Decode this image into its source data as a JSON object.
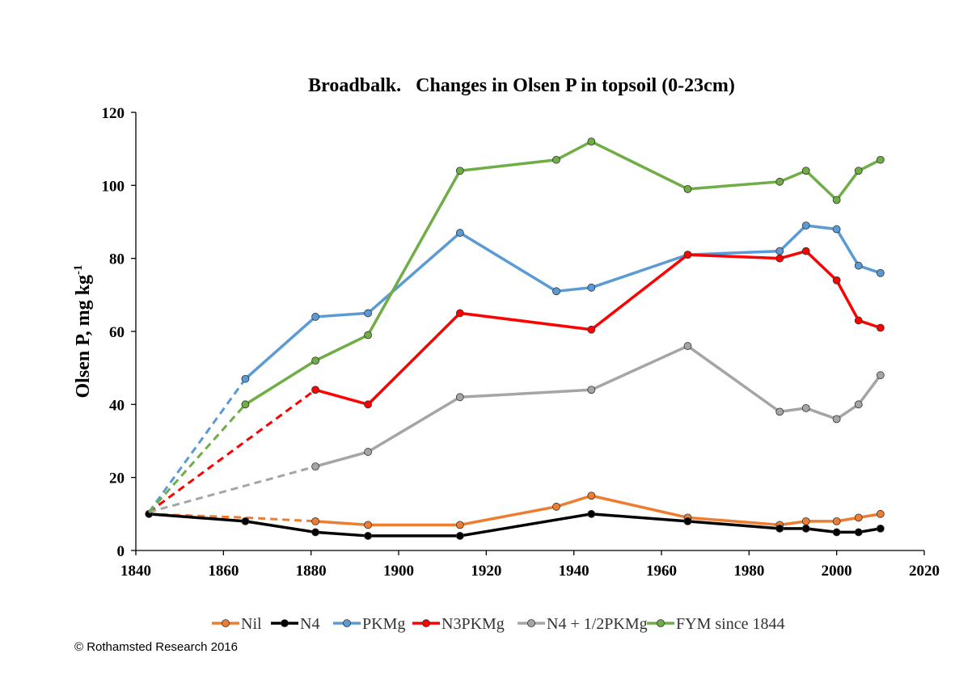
{
  "chart_data": {
    "type": "line",
    "title": "Broadbalk.   Changes in Olsen P in topsoil (0-23cm)",
    "ylabel": "Olsen P, mg kg",
    "ylabel_sup": "-1",
    "xlabel": "",
    "xlim": [
      1840,
      2020
    ],
    "ylim": [
      0,
      120
    ],
    "xticks": [
      1840,
      1860,
      1880,
      1900,
      1920,
      1940,
      1960,
      1980,
      2000,
      2020
    ],
    "yticks": [
      0,
      20,
      40,
      60,
      80,
      100,
      120
    ],
    "grid": false,
    "legend_position": "bottom",
    "series": [
      {
        "name": "Nil",
        "color": "#ED7D31",
        "dashed": [
          [
            1843,
            10
          ],
          [
            1865,
            9
          ],
          [
            1881,
            8
          ]
        ],
        "points": [
          [
            1881,
            8
          ],
          [
            1893,
            7
          ],
          [
            1914,
            7
          ],
          [
            1936,
            12
          ],
          [
            1944,
            15
          ],
          [
            1966,
            9
          ],
          [
            1987,
            7
          ],
          [
            1993,
            8
          ],
          [
            2000,
            8
          ],
          [
            2005,
            9
          ],
          [
            2010,
            10
          ]
        ]
      },
      {
        "name": "N4",
        "color": "#000000",
        "dashed": [],
        "points": [
          [
            1843,
            10
          ],
          [
            1865,
            8
          ],
          [
            1881,
            5
          ],
          [
            1893,
            4
          ],
          [
            1914,
            4
          ],
          [
            1944,
            10
          ],
          [
            1966,
            8
          ],
          [
            1987,
            6
          ],
          [
            1993,
            6
          ],
          [
            2000,
            5
          ],
          [
            2005,
            5
          ],
          [
            2010,
            6
          ]
        ]
      },
      {
        "name": "PKMg",
        "color": "#5B9BD5",
        "dashed": [
          [
            1843,
            10.5
          ],
          [
            1865,
            47
          ]
        ],
        "points": [
          [
            1865,
            47
          ],
          [
            1881,
            64
          ],
          [
            1893,
            65
          ],
          [
            1914,
            87
          ],
          [
            1936,
            71
          ],
          [
            1944,
            72
          ],
          [
            1966,
            81
          ],
          [
            1987,
            82
          ],
          [
            1993,
            89
          ],
          [
            2000,
            88
          ],
          [
            2005,
            78
          ],
          [
            2010,
            76
          ]
        ]
      },
      {
        "name": "N3PKMg",
        "color": "#FF0000",
        "dashed": [
          [
            1843,
            10.5
          ],
          [
            1881,
            44
          ]
        ],
        "points": [
          [
            1881,
            44
          ],
          [
            1893,
            40
          ],
          [
            1914,
            65
          ],
          [
            1944,
            60.5
          ],
          [
            1966,
            81
          ],
          [
            1987,
            80
          ],
          [
            1993,
            82
          ],
          [
            2000,
            74
          ],
          [
            2005,
            63
          ],
          [
            2010,
            61
          ]
        ]
      },
      {
        "name": "N4 + 1/2PKMg",
        "color": "#A5A5A5",
        "dashed": [
          [
            1843,
            10.5
          ],
          [
            1881,
            23
          ]
        ],
        "points": [
          [
            1881,
            23
          ],
          [
            1893,
            27
          ],
          [
            1914,
            42
          ],
          [
            1944,
            44
          ],
          [
            1966,
            56
          ],
          [
            1987,
            38
          ],
          [
            1993,
            39
          ],
          [
            2000,
            36
          ],
          [
            2005,
            40
          ],
          [
            2010,
            48
          ]
        ]
      },
      {
        "name": "FYM since 1844",
        "color": "#70AD47",
        "dashed": [
          [
            1843,
            10.5
          ],
          [
            1865,
            40
          ]
        ],
        "points": [
          [
            1865,
            40
          ],
          [
            1881,
            52
          ],
          [
            1893,
            59
          ],
          [
            1914,
            104
          ],
          [
            1936,
            107
          ],
          [
            1944,
            112
          ],
          [
            1966,
            99
          ],
          [
            1987,
            101
          ],
          [
            1993,
            104
          ],
          [
            2000,
            96
          ],
          [
            2005,
            104
          ],
          [
            2010,
            107
          ]
        ]
      }
    ]
  },
  "copyright": "© Rothamsted Research 2016"
}
